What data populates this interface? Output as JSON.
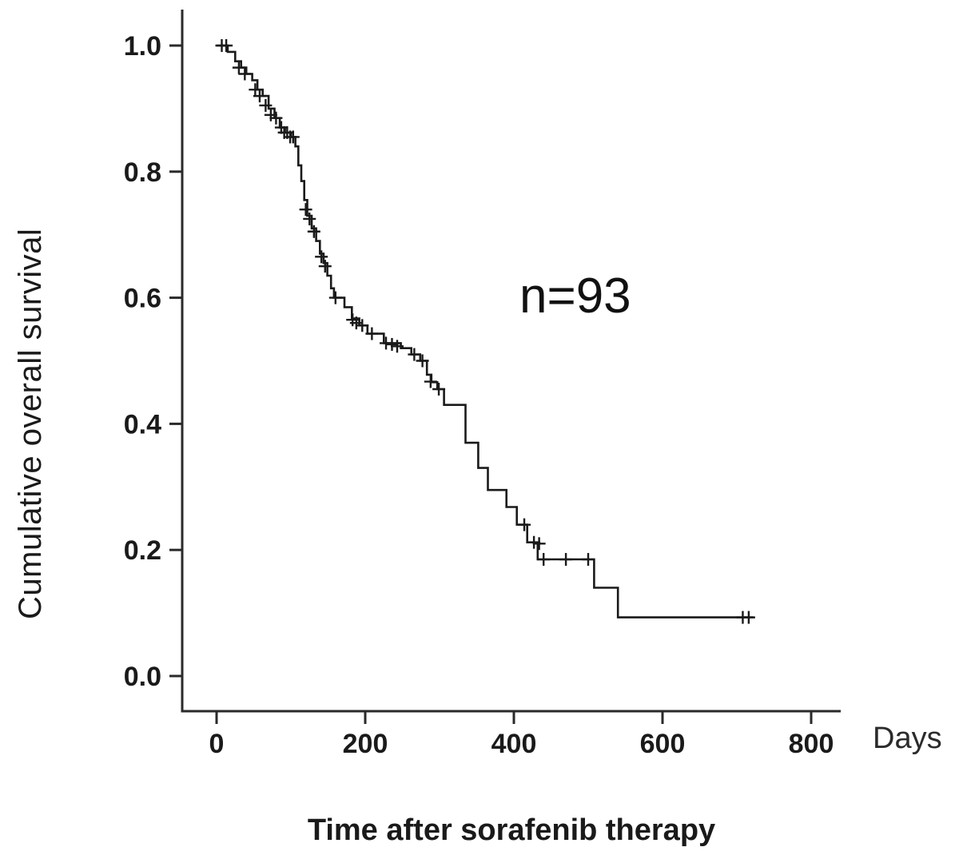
{
  "chart_data": {
    "type": "line",
    "subtype": "kaplan-meier-step",
    "title": "",
    "ylabel": "Cumulative overall survival",
    "xlabel": "Time after sorafenib therapy",
    "x_unit_label": "Days",
    "annotation": "n=93",
    "xlim": [
      0,
      840
    ],
    "ylim": [
      0.0,
      1.0
    ],
    "x_ticks": [
      0,
      200,
      400,
      600,
      800
    ],
    "y_ticks": [
      0.0,
      0.2,
      0.4,
      0.6,
      0.8,
      1.0
    ],
    "grid": false,
    "legend": "none",
    "line_color": "#1a1a1a",
    "axis_color": "#2a2a2a",
    "series": [
      {
        "name": "Cumulative overall survival (n=93)",
        "step_points": [
          [
            0,
            1.0
          ],
          [
            15,
            0.99
          ],
          [
            25,
            0.975
          ],
          [
            33,
            0.965
          ],
          [
            40,
            0.955
          ],
          [
            48,
            0.945
          ],
          [
            55,
            0.93
          ],
          [
            62,
            0.92
          ],
          [
            70,
            0.9
          ],
          [
            78,
            0.885
          ],
          [
            85,
            0.87
          ],
          [
            92,
            0.862
          ],
          [
            100,
            0.855
          ],
          [
            106,
            0.84
          ],
          [
            110,
            0.81
          ],
          [
            114,
            0.785
          ],
          [
            118,
            0.755
          ],
          [
            122,
            0.73
          ],
          [
            128,
            0.71
          ],
          [
            134,
            0.69
          ],
          [
            139,
            0.67
          ],
          [
            144,
            0.655
          ],
          [
            149,
            0.635
          ],
          [
            154,
            0.615
          ],
          [
            158,
            0.6
          ],
          [
            172,
            0.585
          ],
          [
            182,
            0.567
          ],
          [
            192,
            0.556
          ],
          [
            203,
            0.543
          ],
          [
            225,
            0.528
          ],
          [
            248,
            0.52
          ],
          [
            262,
            0.51
          ],
          [
            274,
            0.5
          ],
          [
            283,
            0.478
          ],
          [
            289,
            0.466
          ],
          [
            297,
            0.455
          ],
          [
            306,
            0.43
          ],
          [
            335,
            0.37
          ],
          [
            352,
            0.33
          ],
          [
            365,
            0.295
          ],
          [
            390,
            0.268
          ],
          [
            404,
            0.24
          ],
          [
            418,
            0.212
          ],
          [
            432,
            0.185
          ],
          [
            508,
            0.14
          ],
          [
            540,
            0.093
          ],
          [
            722,
            0.093
          ]
        ]
      }
    ],
    "censor_marks": [
      [
        7,
        1.0
      ],
      [
        13,
        1.0
      ],
      [
        30,
        0.965
      ],
      [
        38,
        0.955
      ],
      [
        52,
        0.93
      ],
      [
        58,
        0.92
      ],
      [
        66,
        0.905
      ],
      [
        73,
        0.89
      ],
      [
        80,
        0.885
      ],
      [
        87,
        0.87
      ],
      [
        91,
        0.862
      ],
      [
        95,
        0.862
      ],
      [
        99,
        0.855
      ],
      [
        103,
        0.855
      ],
      [
        120,
        0.74
      ],
      [
        125,
        0.725
      ],
      [
        131,
        0.705
      ],
      [
        141,
        0.665
      ],
      [
        146,
        0.65
      ],
      [
        160,
        0.6
      ],
      [
        183,
        0.565
      ],
      [
        188,
        0.56
      ],
      [
        196,
        0.556
      ],
      [
        209,
        0.543
      ],
      [
        228,
        0.528
      ],
      [
        236,
        0.526
      ],
      [
        243,
        0.523
      ],
      [
        266,
        0.51
      ],
      [
        277,
        0.5
      ],
      [
        288,
        0.467
      ],
      [
        299,
        0.455
      ],
      [
        414,
        0.24
      ],
      [
        427,
        0.212
      ],
      [
        434,
        0.21
      ],
      [
        440,
        0.185
      ],
      [
        470,
        0.185
      ],
      [
        500,
        0.185
      ],
      [
        708,
        0.093
      ],
      [
        716,
        0.093
      ]
    ]
  }
}
